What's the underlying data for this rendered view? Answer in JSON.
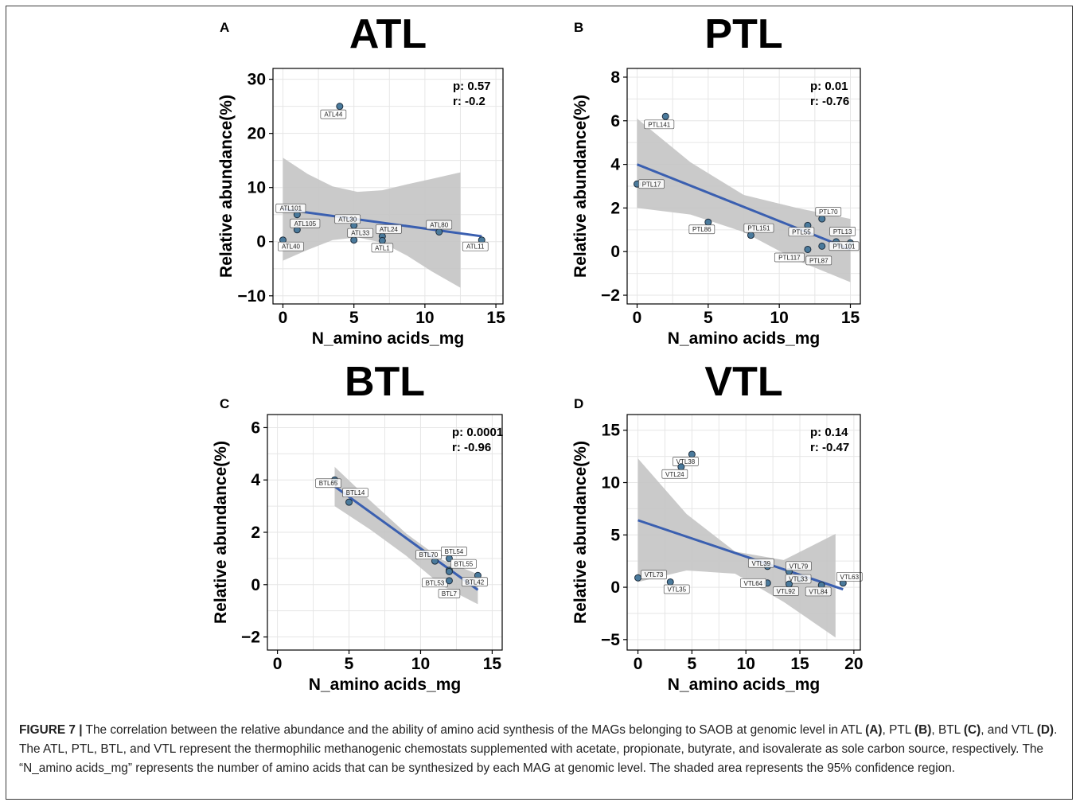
{
  "figure": {
    "caption": {
      "label": "FIGURE 7 |",
      "text_1": " The correlation between the relative abundance and the ability of amino acid synthesis of the MAGs belonging to SAOB at genomic level in ATL ",
      "ref_a": "(A)",
      "text_2": ", PTL ",
      "ref_b": "(B)",
      "text_3": ", BTL ",
      "ref_c": "(C)",
      "text_4": ", and VTL ",
      "ref_d": "(D)",
      "text_5": ". The ATL, PTL, BTL, and VTL represent the thermophilic methanogenic chemostats supplemented with acetate, propionate, butyrate, and isovalerate as sole carbon source, respectively. The “N_amino acids_mg” represents the number of amino acids that can be synthesized by each MAG at genomic level. The shaded area represents the 95% confidence region."
    }
  },
  "colors": {
    "point_fill": "#4a7a9c",
    "regression_line": "#3a5fb0",
    "confidence_band": "#c4c4c4",
    "grid": "#e6e6e6"
  },
  "chart_data": [
    {
      "panel": "A",
      "type": "scatter",
      "title": "ATL",
      "xlabel": "N_amino acids_mg",
      "ylabel": "Relative abundance(%)",
      "xlim": [
        -0.7,
        15.5
      ],
      "ylim": [
        -11.5,
        32
      ],
      "xticks": [
        0,
        5,
        10,
        15
      ],
      "yticks": [
        -10,
        0,
        10,
        20,
        30
      ],
      "grid": true,
      "stats": {
        "p": "p: 0.57",
        "r": "r: -0.2"
      },
      "points": [
        {
          "label": "ATL44",
          "x": 4,
          "y": 25
        },
        {
          "label": "ATL101",
          "x": 1,
          "y": 5
        },
        {
          "label": "ATL105",
          "x": 1,
          "y": 2.2
        },
        {
          "label": "ATL40",
          "x": 0,
          "y": 0.3
        },
        {
          "label": "ATL30",
          "x": 5,
          "y": 3
        },
        {
          "label": "ATL33",
          "x": 5,
          "y": 0.3
        },
        {
          "label": "ATL24",
          "x": 7,
          "y": 1
        },
        {
          "label": "ATL1",
          "x": 7,
          "y": 0.2
        },
        {
          "label": "ATL80",
          "x": 11,
          "y": 1.8
        },
        {
          "label": "ATL11",
          "x": 14,
          "y": 0.3
        }
      ],
      "fit": {
        "x": [
          0,
          14
        ],
        "y": [
          6,
          1
        ]
      },
      "band": {
        "x": [
          0,
          1.75,
          3.5,
          5.25,
          7,
          8.75,
          10.5,
          12.5
        ],
        "upper": [
          15.5,
          12.5,
          10.2,
          9.2,
          9.5,
          10.6,
          11.6,
          12.8
        ],
        "lower": [
          -3.5,
          -1.5,
          0.3,
          0.8,
          -0.2,
          -2.6,
          -5.5,
          -8.5
        ]
      }
    },
    {
      "panel": "B",
      "type": "scatter",
      "title": "PTL",
      "xlabel": "N_amino acids_mg",
      "ylabel": "Relative abundance(%)",
      "xlim": [
        -0.7,
        15.7
      ],
      "ylim": [
        -2.4,
        8.4
      ],
      "xticks": [
        0,
        5,
        10,
        15
      ],
      "yticks": [
        -2,
        0,
        2,
        4,
        6,
        8
      ],
      "grid": true,
      "stats": {
        "p": "p: 0.01",
        "r": "r: -0.76"
      },
      "points": [
        {
          "label": "PTL141",
          "x": 2,
          "y": 6.2
        },
        {
          "label": "PTL17",
          "x": 0,
          "y": 3.1
        },
        {
          "label": "PTL86",
          "x": 5,
          "y": 1.35
        },
        {
          "label": "PTL151",
          "x": 8,
          "y": 0.75
        },
        {
          "label": "PTL55",
          "x": 12,
          "y": 1.2
        },
        {
          "label": "PTL70",
          "x": 13,
          "y": 1.5
        },
        {
          "label": "PTL13",
          "x": 14,
          "y": 0.45
        },
        {
          "label": "PTL101",
          "x": 15,
          "y": 0.4
        },
        {
          "label": "PTL117",
          "x": 12,
          "y": 0.1
        },
        {
          "label": "PTL87",
          "x": 13,
          "y": 0.25
        }
      ],
      "fit": {
        "x": [
          0,
          15
        ],
        "y": [
          4,
          0.1
        ]
      },
      "band": {
        "x": [
          0,
          3.75,
          7.5,
          11.25,
          15
        ],
        "upper": [
          6.1,
          4.1,
          2.6,
          2,
          1.5
        ],
        "lower": [
          2,
          1.7,
          0.9,
          -0.4,
          -1.4
        ]
      }
    },
    {
      "panel": "C",
      "type": "scatter",
      "title": "BTL",
      "xlabel": "N_amino acids_mg",
      "ylabel": "Relative abundance(%)",
      "xlim": [
        -0.7,
        15.7
      ],
      "ylim": [
        -2.5,
        6.5
      ],
      "xticks": [
        0,
        5,
        10,
        15
      ],
      "yticks": [
        -2,
        0,
        2,
        4,
        6
      ],
      "grid": true,
      "stats": {
        "p": "p: 0.0001",
        "r": "r: -0.96"
      },
      "points": [
        {
          "label": "BTL65",
          "x": 4,
          "y": 4
        },
        {
          "label": "BTL14",
          "x": 5,
          "y": 3.15
        },
        {
          "label": "BTL70",
          "x": 11,
          "y": 0.9
        },
        {
          "label": "BTL54",
          "x": 12,
          "y": 1
        },
        {
          "label": "BTL55",
          "x": 12,
          "y": 0.55
        },
        {
          "label": "BTL53",
          "x": 12,
          "y": 0.5
        },
        {
          "label": "BTL7",
          "x": 12,
          "y": 0.15
        },
        {
          "label": "BTL42",
          "x": 14,
          "y": 0.35
        }
      ],
      "fit": {
        "x": [
          4,
          14
        ],
        "y": [
          3.75,
          -0.2
        ]
      },
      "band": {
        "x": [
          4,
          6.5,
          9,
          11.5,
          14
        ],
        "upper": [
          4.5,
          3.2,
          1.95,
          0.95,
          0.4
        ],
        "lower": [
          3,
          2.1,
          1.1,
          -0.05,
          -0.75
        ]
      }
    },
    {
      "panel": "D",
      "type": "scatter",
      "title": "VTL",
      "xlabel": "N_amino acids_mg",
      "ylabel": "Relative abundance(%)",
      "xlim": [
        -1,
        20.6
      ],
      "ylim": [
        -6,
        16.5
      ],
      "xticks": [
        0,
        5,
        10,
        15,
        20
      ],
      "yticks": [
        -5,
        0,
        5,
        10,
        15
      ],
      "grid": true,
      "stats": {
        "p": "p: 0.14",
        "r": "r: -0.47"
      },
      "points": [
        {
          "label": "VTL38",
          "x": 5,
          "y": 12.7
        },
        {
          "label": "VTL24",
          "x": 4,
          "y": 11.5
        },
        {
          "label": "VTL73",
          "x": 0,
          "y": 0.9
        },
        {
          "label": "VTL35",
          "x": 3,
          "y": 0.5
        },
        {
          "label": "VTL39",
          "x": 12,
          "y": 2
        },
        {
          "label": "VTL79",
          "x": 14,
          "y": 1.5
        },
        {
          "label": "VTL64",
          "x": 12,
          "y": 0.4
        },
        {
          "label": "VTL33",
          "x": 15,
          "y": 0.8
        },
        {
          "label": "VTL92",
          "x": 14,
          "y": 0.3
        },
        {
          "label": "VTL84",
          "x": 17,
          "y": 0.2
        },
        {
          "label": "VTL63",
          "x": 19,
          "y": 0.4
        }
      ],
      "fit": {
        "x": [
          0,
          19
        ],
        "y": [
          6.4,
          -0.2
        ]
      },
      "band": {
        "x": [
          0,
          4.5,
          9,
          13.5,
          18.3
        ],
        "upper": [
          12.3,
          7,
          3.4,
          2.6,
          5.1
        ],
        "lower": [
          0.5,
          1.6,
          1.3,
          -1.4,
          -4.8
        ]
      }
    }
  ]
}
